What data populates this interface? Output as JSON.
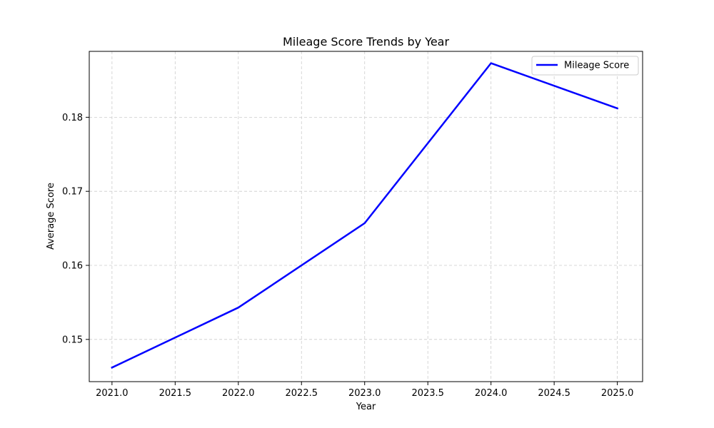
{
  "chart_data": {
    "type": "line",
    "title": "Mileage Score Trends by Year",
    "xlabel": "Year",
    "ylabel": "Average Score",
    "x": [
      2021,
      2022,
      2023,
      2024,
      2025
    ],
    "series": [
      {
        "name": "Mileage Score",
        "color": "#0000ff",
        "values": [
          0.1462,
          0.1543,
          0.1657,
          0.1873,
          0.1812
        ]
      }
    ],
    "xlim": [
      2020.82,
      2025.2
    ],
    "ylim": [
      0.1443,
      0.1889
    ],
    "xticks": [
      2021.0,
      2021.5,
      2022.0,
      2022.5,
      2023.0,
      2023.5,
      2024.0,
      2024.5,
      2025.0
    ],
    "xtick_labels": [
      "2021.0",
      "2021.5",
      "2022.0",
      "2022.5",
      "2023.0",
      "2023.5",
      "2024.0",
      "2024.5",
      "2025.0"
    ],
    "yticks": [
      0.15,
      0.16,
      0.17,
      0.18
    ],
    "ytick_labels": [
      "0.15",
      "0.16",
      "0.17",
      "0.18"
    ],
    "grid": true,
    "legend_position": "top-right"
  }
}
